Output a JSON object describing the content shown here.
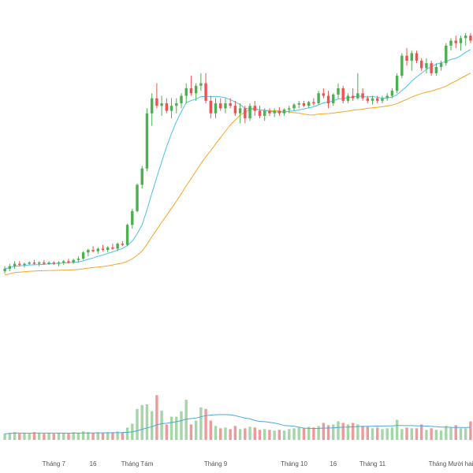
{
  "chart_data": {
    "type": "candlestick",
    "title": "",
    "xlabel": "",
    "ylabel": "",
    "grid": false,
    "legend": "none",
    "x_tick_labels": [
      {
        "label": "Tháng 7",
        "index": 10
      },
      {
        "label": "16",
        "index": 18
      },
      {
        "label": "Tháng Tám",
        "index": 27
      },
      {
        "label": "Tháng 9",
        "index": 43
      },
      {
        "label": "Tháng 10",
        "index": 59
      },
      {
        "label": "16",
        "index": 67
      },
      {
        "label": "Tháng 11",
        "index": 75
      },
      {
        "label": "Tháng Mười hai",
        "index": 91
      }
    ],
    "price_range": [
      0,
      100
    ],
    "volume_range": [
      0,
      100
    ],
    "colors": {
      "up": "#26a69a",
      "up_candle": "#4caf50",
      "down": "#ef5350",
      "up_volume": "#a5d6a7",
      "down_volume": "#ef9a9a",
      "ma_fast": "#4dc3e8",
      "ma_slow": "#f5a623",
      "volume_ma": "#4aa8e0"
    },
    "candles": [
      [
        5.0,
        7.0,
        4.0,
        6.0
      ],
      [
        6.0,
        8.0,
        5.0,
        7.0
      ],
      [
        7.0,
        9.0,
        6.0,
        8.0
      ],
      [
        8.0,
        9.0,
        7.0,
        7.5
      ],
      [
        7.5,
        8.5,
        6.5,
        8.0
      ],
      [
        8.0,
        9.0,
        7.5,
        8.5
      ],
      [
        8.5,
        9.5,
        7.5,
        8.0
      ],
      [
        8.0,
        9.0,
        7.0,
        8.5
      ],
      [
        8.5,
        9.5,
        7.5,
        8.0
      ],
      [
        8.0,
        9.0,
        7.5,
        8.5
      ],
      [
        8.5,
        9.0,
        7.5,
        8.0
      ],
      [
        8.0,
        9.0,
        7.0,
        8.5
      ],
      [
        8.5,
        9.5,
        7.5,
        9.0
      ],
      [
        9.0,
        10.0,
        8.0,
        8.5
      ],
      [
        8.5,
        10.0,
        8.0,
        9.5
      ],
      [
        9.5,
        11.0,
        8.5,
        10.0
      ],
      [
        10.0,
        13.0,
        9.5,
        12.5
      ],
      [
        12.5,
        14.0,
        11.0,
        13.5
      ],
      [
        13.5,
        15.0,
        12.5,
        13.0
      ],
      [
        13.0,
        14.5,
        12.0,
        14.0
      ],
      [
        14.0,
        15.5,
        13.0,
        13.5
      ],
      [
        13.5,
        15.0,
        12.5,
        14.5
      ],
      [
        14.5,
        16.0,
        13.5,
        14.0
      ],
      [
        14.0,
        16.5,
        13.0,
        16.0
      ],
      [
        16.0,
        17.0,
        15.0,
        15.5
      ],
      [
        15.5,
        24.0,
        15.0,
        23.5
      ],
      [
        23.5,
        30.0,
        22.0,
        29.0
      ],
      [
        29.0,
        40.0,
        28.5,
        39.5
      ],
      [
        39.5,
        47.0,
        38.0,
        46.0
      ],
      [
        46.0,
        70.0,
        45.0,
        68.0
      ],
      [
        68.0,
        76.0,
        63.0,
        74.0
      ],
      [
        74.0,
        80.0,
        70.0,
        71.0
      ],
      [
        71.0,
        75.0,
        67.0,
        72.0
      ],
      [
        72.0,
        74.0,
        68.0,
        69.0
      ],
      [
        69.0,
        74.0,
        66.0,
        71.0
      ],
      [
        71.0,
        74.0,
        68.0,
        72.0
      ],
      [
        72.0,
        76.0,
        70.0,
        75.0
      ],
      [
        75.0,
        80.0,
        72.0,
        78.0
      ],
      [
        78.0,
        83.0,
        75.0,
        76.0
      ],
      [
        76.0,
        80.0,
        73.0,
        79.0
      ],
      [
        79.0,
        84.0,
        77.0,
        80.0
      ],
      [
        80.0,
        84.0,
        72.0,
        73.0
      ],
      [
        73.0,
        75.0,
        66.0,
        68.0
      ],
      [
        68.0,
        74.0,
        66.0,
        72.0
      ],
      [
        72.0,
        74.0,
        69.0,
        70.0
      ],
      [
        70.0,
        74.0,
        68.0,
        72.0
      ],
      [
        72.0,
        74.0,
        70.0,
        71.0
      ],
      [
        71.0,
        73.0,
        67.0,
        68.0
      ],
      [
        68.0,
        72.0,
        64.0,
        70.0
      ],
      [
        70.0,
        71.0,
        64.0,
        66.0
      ],
      [
        66.0,
        72.0,
        65.0,
        71.0
      ],
      [
        71.0,
        73.0,
        67.0,
        69.0
      ],
      [
        69.0,
        71.0,
        66.0,
        67.0
      ],
      [
        67.0,
        70.0,
        65.0,
        69.0
      ],
      [
        69.0,
        70.0,
        67.0,
        68.0
      ],
      [
        68.0,
        70.0,
        66.5,
        69.0
      ],
      [
        69.0,
        70.5,
        67.0,
        68.0
      ],
      [
        68.0,
        70.0,
        67.0,
        69.5
      ],
      [
        69.5,
        71.0,
        68.0,
        70.0
      ],
      [
        70.0,
        72.0,
        69.0,
        71.5
      ],
      [
        71.5,
        73.0,
        70.0,
        72.0
      ],
      [
        72.0,
        73.0,
        70.5,
        71.0
      ],
      [
        71.0,
        73.0,
        70.0,
        72.5
      ],
      [
        72.5,
        74.0,
        71.0,
        72.0
      ],
      [
        72.0,
        77.0,
        71.5,
        76.0
      ],
      [
        76.0,
        78.0,
        74.0,
        75.0
      ],
      [
        75.0,
        77.0,
        70.0,
        72.0
      ],
      [
        72.0,
        76.0,
        71.0,
        75.5
      ],
      [
        75.5,
        80.0,
        74.0,
        78.0
      ],
      [
        78.0,
        79.0,
        72.0,
        73.0
      ],
      [
        73.0,
        76.0,
        72.0,
        75.0
      ],
      [
        75.0,
        78.0,
        73.0,
        74.0
      ],
      [
        74.0,
        84.0,
        73.5,
        76.0
      ],
      [
        76.0,
        78.0,
        73.0,
        74.0
      ],
      [
        74.0,
        75.0,
        72.0,
        73.0
      ],
      [
        73.0,
        75.0,
        71.5,
        74.0
      ],
      [
        74.0,
        75.0,
        72.0,
        73.0
      ],
      [
        73.0,
        75.0,
        72.0,
        74.0
      ],
      [
        74.0,
        76.0,
        73.0,
        75.0
      ],
      [
        75.0,
        78.0,
        74.0,
        77.0
      ],
      [
        77.0,
        84.0,
        76.0,
        83.0
      ],
      [
        83.0,
        92.0,
        82.0,
        91.0
      ],
      [
        91.0,
        94.0,
        87.0,
        89.0
      ],
      [
        89.0,
        93.0,
        85.0,
        92.0
      ],
      [
        92.0,
        93.0,
        88.0,
        89.0
      ],
      [
        89.0,
        90.0,
        85.0,
        86.0
      ],
      [
        86.0,
        90.0,
        84.0,
        88.0
      ],
      [
        88.0,
        89.0,
        83.0,
        84.0
      ],
      [
        84.0,
        88.0,
        83.0,
        86.5
      ],
      [
        86.5,
        89.0,
        85.0,
        88.0
      ],
      [
        88.0,
        96.0,
        87.0,
        95.0
      ],
      [
        95.0,
        98.0,
        93.0,
        97.0
      ],
      [
        97.0,
        99.0,
        94.0,
        96.0
      ],
      [
        96.0,
        99.0,
        93.0,
        98.0
      ],
      [
        98.0,
        100.0,
        95.0,
        99.0
      ],
      [
        99.0,
        100.0,
        96.0,
        97.0
      ]
    ],
    "volumes": [
      8,
      9,
      10,
      8,
      9,
      8,
      10,
      9,
      8,
      9,
      8,
      9,
      9,
      8,
      10,
      9,
      11,
      10,
      9,
      10,
      9,
      10,
      10,
      11,
      10,
      16,
      21,
      40,
      45,
      46,
      37,
      58,
      38,
      20,
      30,
      30,
      37,
      52,
      20,
      25,
      42,
      40,
      25,
      18,
      15,
      16,
      14,
      18,
      14,
      15,
      17,
      16,
      13,
      14,
      13,
      12,
      13,
      12,
      14,
      15,
      16,
      15,
      17,
      16,
      18,
      22,
      19,
      20,
      24,
      22,
      20,
      22,
      20,
      18,
      17,
      15,
      16,
      14,
      15,
      16,
      26,
      14,
      16,
      15,
      15,
      20,
      13,
      15,
      13,
      12,
      18,
      16,
      19,
      15,
      15,
      24
    ]
  }
}
